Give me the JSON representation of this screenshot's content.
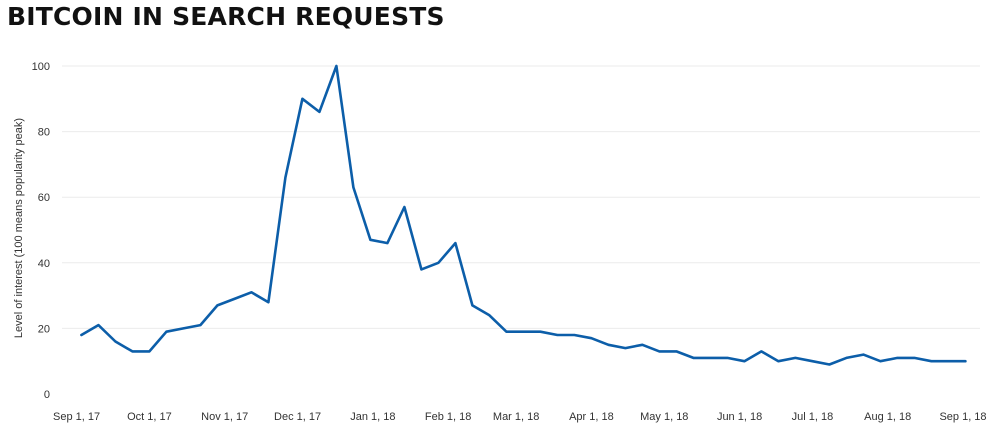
{
  "chart_data": {
    "type": "line",
    "title": "BITCOIN IN SEARCH REQUESTS",
    "ylabel": "Level of interest (100 means popularity peak)",
    "xlabel": "",
    "ylim": [
      0,
      100
    ],
    "yticks": [
      0,
      20,
      40,
      60,
      80,
      100
    ],
    "xlim": [
      "2017-08-26",
      "2018-09-08"
    ],
    "xticks": [
      {
        "date": "2017-09-01",
        "label": "Sep 1, 17"
      },
      {
        "date": "2017-10-01",
        "label": "Oct 1, 17"
      },
      {
        "date": "2017-11-01",
        "label": "Nov 1, 17"
      },
      {
        "date": "2017-12-01",
        "label": "Dec 1, 17"
      },
      {
        "date": "2018-01-01",
        "label": "Jan 1, 18"
      },
      {
        "date": "2018-02-01",
        "label": "Feb 1, 18"
      },
      {
        "date": "2018-03-01",
        "label": "Mar 1, 18"
      },
      {
        "date": "2018-04-01",
        "label": "Apr 1, 18"
      },
      {
        "date": "2018-05-01",
        "label": "May 1, 18"
      },
      {
        "date": "2018-06-01",
        "label": "Jun 1, 18"
      },
      {
        "date": "2018-07-01",
        "label": "Jul 1, 18"
      },
      {
        "date": "2018-08-01",
        "label": "Aug 1, 18"
      },
      {
        "date": "2018-09-01",
        "label": "Sep 1, 18"
      }
    ],
    "grid": true,
    "color": "#0c5ea9",
    "series": [
      {
        "x": [
          "2017-09-03",
          "2017-09-10",
          "2017-09-17",
          "2017-09-24",
          "2017-10-01",
          "2017-10-08",
          "2017-10-15",
          "2017-10-22",
          "2017-10-29",
          "2017-11-05",
          "2017-11-12",
          "2017-11-19",
          "2017-11-26",
          "2017-12-03",
          "2017-12-10",
          "2017-12-17",
          "2017-12-24",
          "2017-12-31",
          "2018-01-07",
          "2018-01-14",
          "2018-01-21",
          "2018-01-28",
          "2018-02-04",
          "2018-02-11",
          "2018-02-18",
          "2018-02-25",
          "2018-03-04",
          "2018-03-11",
          "2018-03-18",
          "2018-03-25",
          "2018-04-01",
          "2018-04-08",
          "2018-04-15",
          "2018-04-22",
          "2018-04-29",
          "2018-05-06",
          "2018-05-13",
          "2018-05-20",
          "2018-05-27",
          "2018-06-03",
          "2018-06-10",
          "2018-06-17",
          "2018-06-24",
          "2018-07-01",
          "2018-07-08",
          "2018-07-15",
          "2018-07-22",
          "2018-07-29",
          "2018-08-05",
          "2018-08-12",
          "2018-08-19",
          "2018-08-26",
          "2018-09-02"
        ],
        "values": [
          18,
          21,
          16,
          13,
          13,
          19,
          20,
          21,
          27,
          29,
          31,
          28,
          66,
          90,
          86,
          100,
          63,
          47,
          46,
          57,
          38,
          40,
          46,
          27,
          24,
          19,
          19,
          19,
          18,
          18,
          17,
          15,
          14,
          15,
          13,
          13,
          11,
          11,
          11,
          10,
          13,
          10,
          11,
          10,
          9,
          11,
          12,
          10,
          11,
          11,
          10,
          10,
          10
        ]
      }
    ]
  }
}
